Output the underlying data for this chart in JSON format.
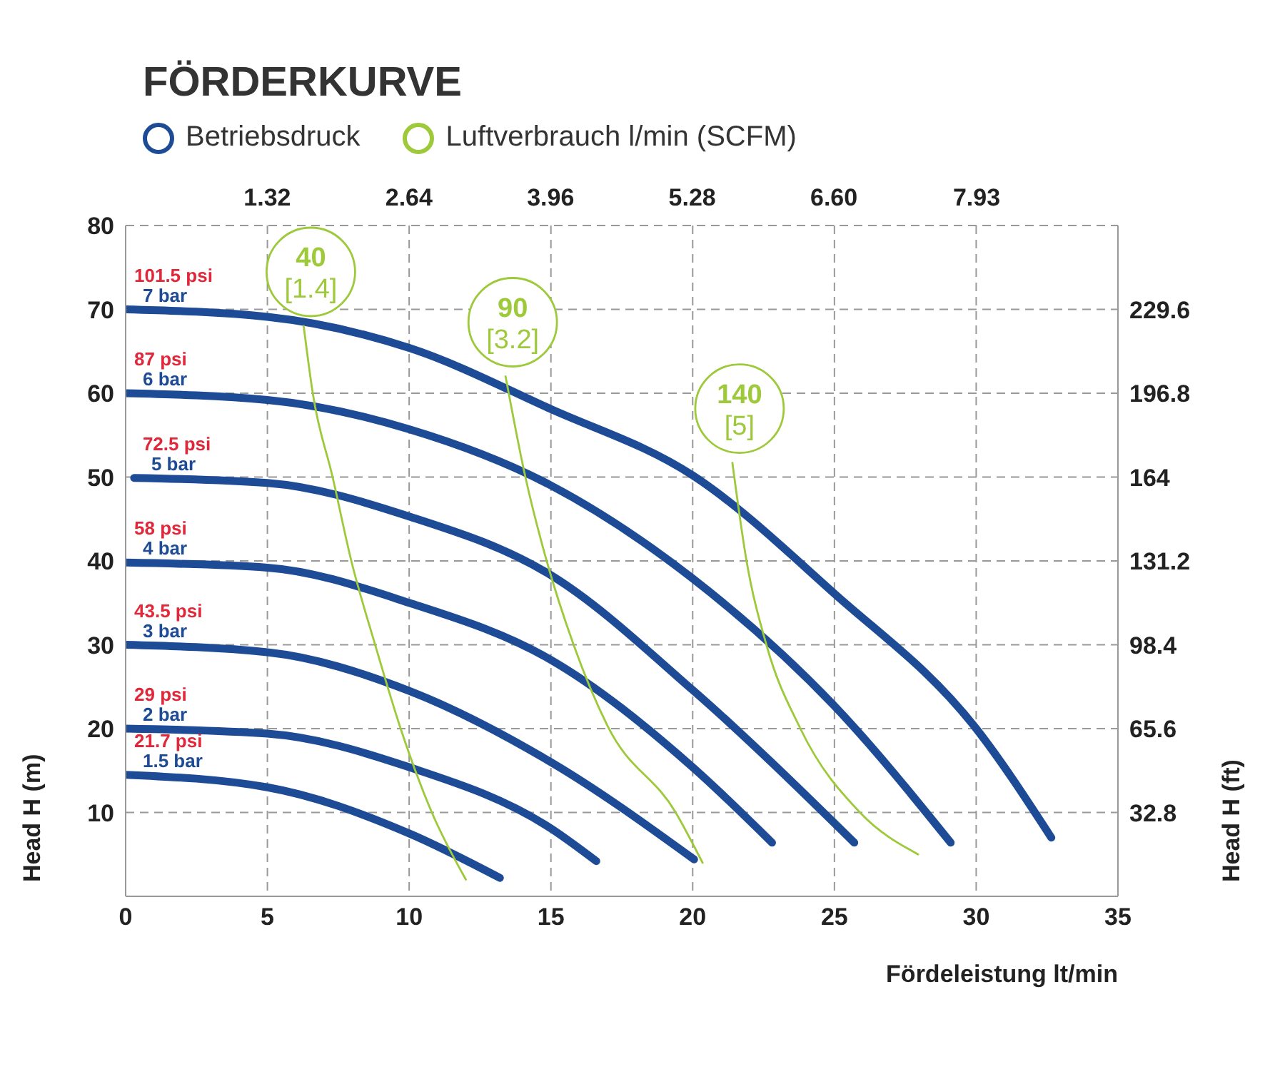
{
  "chart_data": {
    "type": "line",
    "title": "FÖRDERKURVE",
    "xlabel": "Fördeleistung lt/min",
    "ylabel": "Head H (m)",
    "y2label": "Head H (ft)",
    "xlim": [
      0,
      35
    ],
    "xticks": [
      0,
      5,
      10,
      15,
      20,
      25,
      30,
      35
    ],
    "ylim": [
      0,
      80
    ],
    "yticks": [
      10,
      20,
      30,
      40,
      50,
      60,
      70,
      80
    ],
    "x2lim": [
      0,
      9.247
    ],
    "x2ticks": [
      1.32,
      2.64,
      3.96,
      5.28,
      {
        "value": 6.6,
        "label": "6.60"
      },
      7.93
    ],
    "y2lim": [
      0,
      262.4
    ],
    "y2ticks": [
      32.8,
      65.6,
      98.4,
      131.2,
      164,
      196.8,
      229.6
    ],
    "grid": true,
    "legend": "top left",
    "marker": "none",
    "line_style": "solid",
    "series": [
      {
        "name": "Betriebsdruck",
        "color": "#1e4b96",
        "x": [
          0,
          5,
          10,
          15,
          20,
          25,
          30,
          32.65
        ],
        "values": [
          70,
          69.1,
          65.4,
          58.1,
          50.2,
          36.1,
          20,
          7
        ]
      },
      {
        "color": "#1e4b96",
        "x": [
          0,
          5,
          10,
          15,
          20,
          25,
          29.1
        ],
        "values": [
          60,
          59.2,
          55.7,
          49,
          37.9,
          22.7,
          6.4
        ]
      },
      {
        "color": "#1e4b96",
        "x": [
          0.3,
          5,
          10,
          15,
          20,
          25.7
        ],
        "values": [
          49.9,
          49.3,
          45.3,
          38.3,
          24.6,
          6.4
        ]
      },
      {
        "color": "#1e4b96",
        "x": [
          0,
          5,
          10,
          15,
          20,
          22.8
        ],
        "values": [
          39.8,
          39.2,
          35,
          28.2,
          15.4,
          6.4
        ]
      },
      {
        "color": "#1e4b96",
        "x": [
          0,
          5,
          10,
          15,
          20.05
        ],
        "values": [
          30,
          29.1,
          24.5,
          16,
          4.4
        ]
      },
      {
        "color": "#1e4b96",
        "x": [
          0,
          5,
          10,
          15,
          16.6
        ],
        "values": [
          20,
          19.4,
          15.4,
          8.1,
          4.2
        ]
      },
      {
        "color": "#1e4b96",
        "x": [
          0,
          5,
          10,
          13.2
        ],
        "values": [
          14.5,
          13,
          7.5,
          2.2
        ]
      },
      {
        "name": "Luftverbrauch l/min (SCFM)",
        "color": "#9dc93b",
        "x": [
          6.28,
          6.6,
          7.3,
          7.96,
          8.8,
          9.7,
          10.8,
          12
        ],
        "values": [
          68,
          60,
          50,
          40,
          30,
          20,
          10,
          2
        ]
      },
      {
        "color": "#9dc93b",
        "x": [
          13.4,
          14.1,
          14.85,
          15.8,
          17,
          19.4,
          20.35
        ],
        "values": [
          62,
          50,
          40,
          30,
          20.3,
          10,
          4
        ]
      },
      {
        "color": "#9dc93b",
        "x": [
          21.4,
          21.9,
          22.6,
          23.8,
          25.9,
          27.95
        ],
        "values": [
          51.7,
          40,
          30,
          20,
          10,
          5
        ]
      }
    ],
    "annotations": [
      "101.5 psi",
      "7 bar",
      "87 psi",
      "6 bar",
      "72.5 psi",
      "5 bar",
      "58 psi",
      "4 bar",
      "43.5 psi",
      "3 bar",
      "29 psi",
      "2 bar",
      "21.7 psi",
      "1.5 bar",
      "40",
      "[1.4]",
      "90",
      "[3.2]",
      "140",
      "[5]"
    ]
  }
}
